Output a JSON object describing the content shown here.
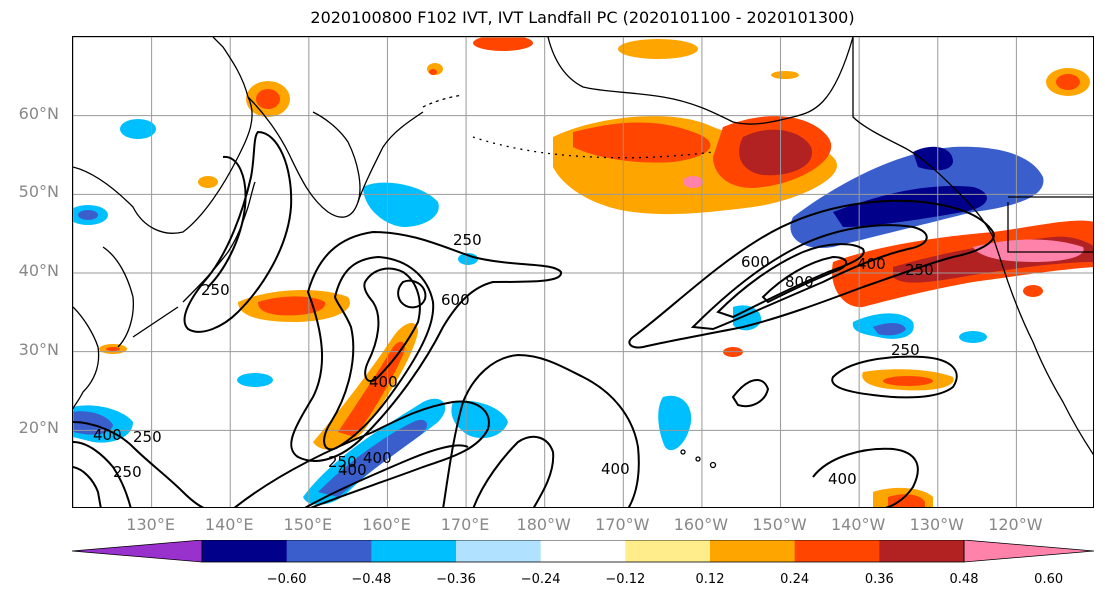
{
  "title": "2020100800 F102 IVT, IVT Landfall PC (2020101100 - 2020101300)",
  "lat_labels": [
    {
      "text": "60°N",
      "lat": 60
    },
    {
      "text": "50°N",
      "lat": 50
    },
    {
      "text": "40°N",
      "lat": 40
    },
    {
      "text": "30°N",
      "lat": 30
    },
    {
      "text": "20°N",
      "lat": 20
    }
  ],
  "lon_labels": [
    {
      "text": "130°E",
      "lon": 130
    },
    {
      "text": "140°E",
      "lon": 140
    },
    {
      "text": "150°E",
      "lon": 150
    },
    {
      "text": "160°E",
      "lon": 160
    },
    {
      "text": "170°E",
      "lon": 170
    },
    {
      "text": "180°W",
      "lon": 180
    },
    {
      "text": "170°W",
      "lon": 190
    },
    {
      "text": "160°W",
      "lon": 200
    },
    {
      "text": "150°W",
      "lon": 210
    },
    {
      "text": "140°W",
      "lon": 220
    },
    {
      "text": "130°W",
      "lon": 230
    },
    {
      "text": "120°W",
      "lon": 240
    }
  ],
  "map_extent": {
    "lon_min": 120,
    "lon_max": 250,
    "lat_min": 10,
    "lat_max": 70
  },
  "colorbar": {
    "colors": [
      "#9932cc",
      "#00008b",
      "#3a5fcd",
      "#00bfff",
      "#b0e2ff",
      "#ffffff",
      "#ffec8b",
      "#ffa500",
      "#ff4500",
      "#b22222",
      "#ff82ab"
    ],
    "tick_labels": [
      "−0.60",
      "−0.48",
      "−0.36",
      "−0.24",
      "−0.12",
      "0.12",
      "0.24",
      "0.36",
      "0.48",
      "0.60"
    ],
    "levels": [
      -0.6,
      -0.48,
      -0.36,
      -0.24,
      -0.12,
      0.12,
      0.24,
      0.36,
      0.48,
      0.6
    ]
  },
  "contour_labels": [
    "250",
    "600",
    "400",
    "250",
    "600",
    "800",
    "400",
    "250",
    "250",
    "400",
    "250",
    "400",
    "400",
    "400",
    "250",
    "250",
    "400"
  ]
}
